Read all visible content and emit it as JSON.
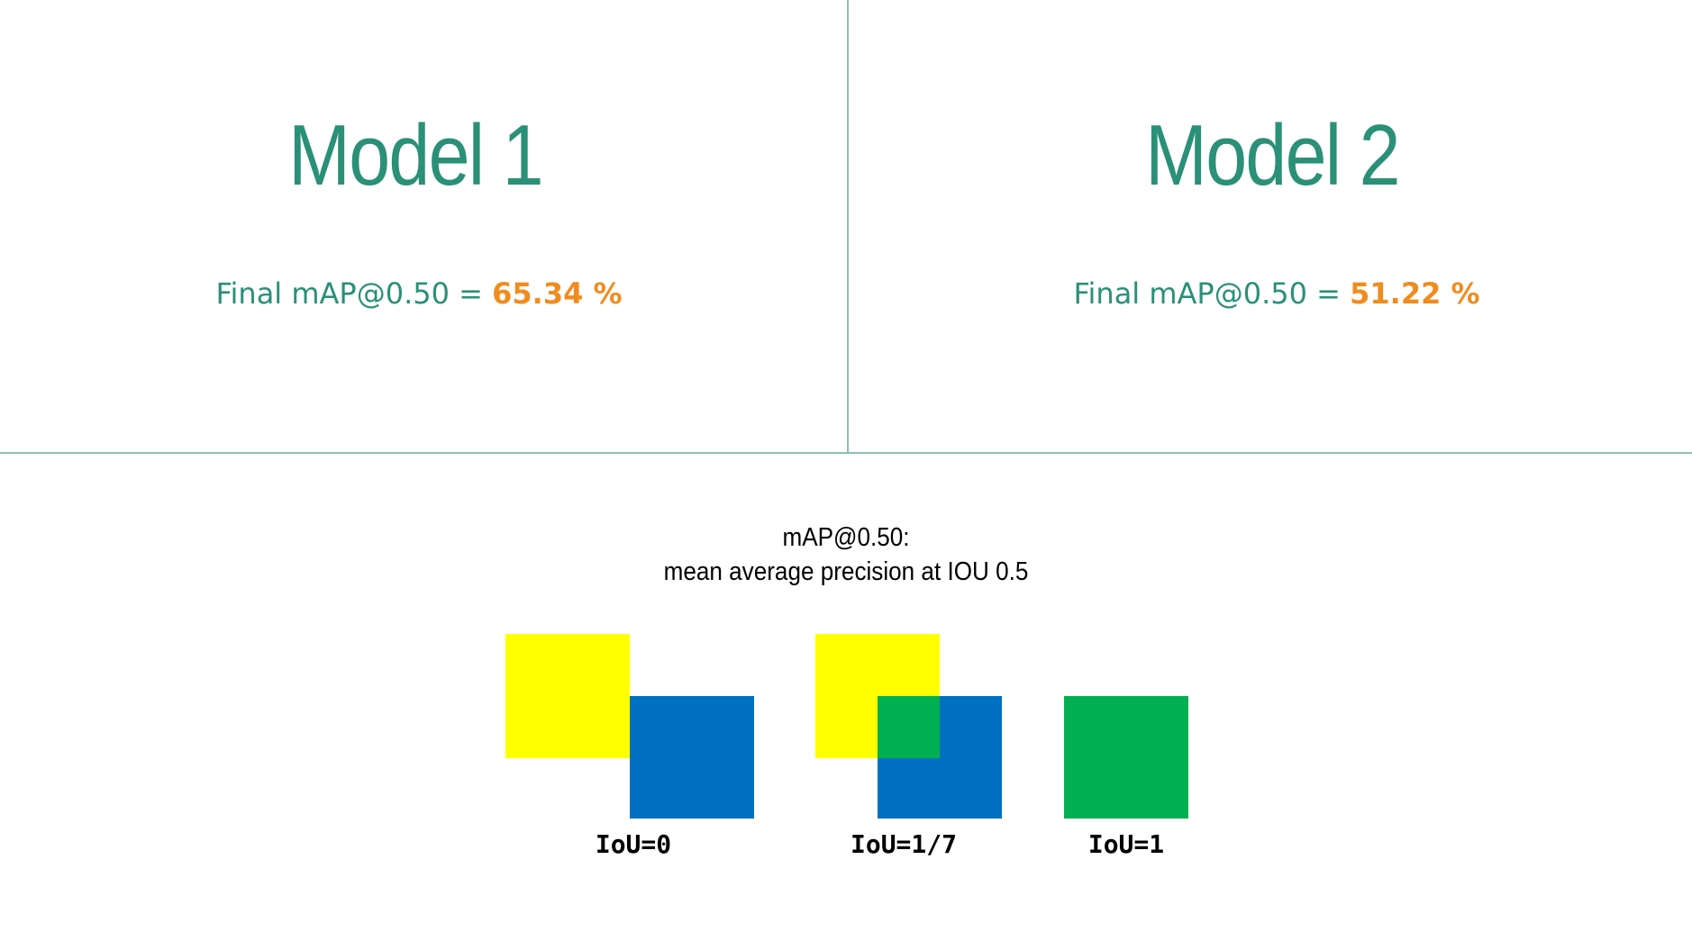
{
  "colors": {
    "title": "#2a9078",
    "metric_text": "#2a9078",
    "metric_value": "#f08c1e",
    "divider": "#8fbfb3",
    "yellow": "#ffff00",
    "blue": "#0070c0",
    "green": "#00b050"
  },
  "model1": {
    "title": "Model 1",
    "metric_label": "Final mAP@0.50 = ",
    "metric_value": "65.34 %"
  },
  "model2": {
    "title": "Model 2",
    "metric_label": "Final mAP@0.50 = ",
    "metric_value": "51.22 %"
  },
  "explanation": {
    "line1": "mAP@0.50:",
    "line2": "mean average precision at IOU 0.5"
  },
  "iou_examples": [
    {
      "label": "IoU=0"
    },
    {
      "label": "IoU=1/7"
    },
    {
      "label": "IoU=1"
    }
  ]
}
